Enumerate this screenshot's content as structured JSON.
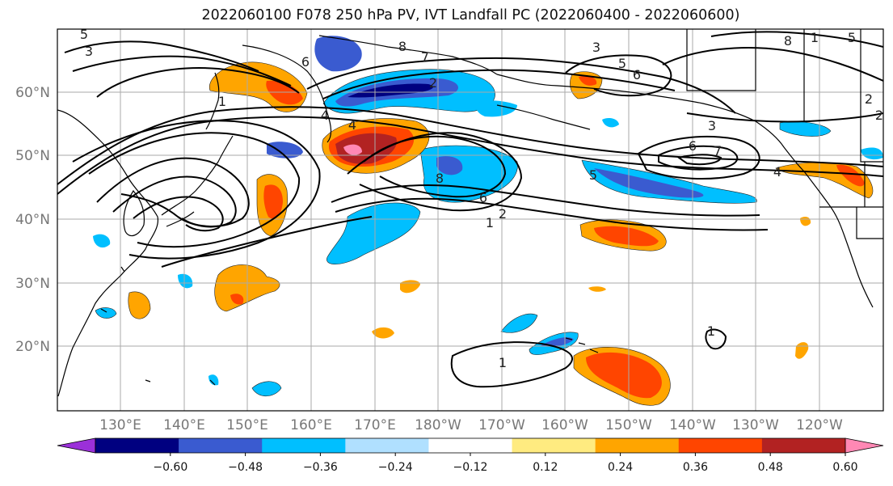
{
  "title": "2022060100 F078 250 hPa PV, IVT Landfall PC (2022060400 - 2022060600)",
  "lat_labels": [
    "60°N",
    "50°N",
    "40°N",
    "30°N",
    "20°N"
  ],
  "lon_labels": [
    "130°E",
    "140°E",
    "150°E",
    "160°E",
    "170°E",
    "180°W",
    "170°W",
    "160°W",
    "150°W",
    "140°W",
    "130°W",
    "120°W"
  ],
  "colorbar": {
    "ticks": [
      "−0.60",
      "−0.48",
      "−0.36",
      "−0.24",
      "−0.12",
      "0.12",
      "0.24",
      "0.36",
      "0.48",
      "0.60"
    ],
    "colors": [
      "#9b30d9",
      "#000080",
      "#3a5bd0",
      "#00bfff",
      "#b0e0ff",
      "#ffffff",
      "#ffeb80",
      "#ffa500",
      "#ff4500",
      "#b22222",
      "#ff88b4"
    ]
  },
  "contour_labels": [
    "5",
    "3",
    "6",
    "7",
    "8",
    "1",
    "2",
    "3",
    "5",
    "6",
    "8",
    "1",
    "2",
    "3",
    "6",
    "7",
    "4",
    "5",
    "6",
    "8",
    "1",
    "4",
    "5",
    "1",
    "2",
    "4",
    "1",
    "2"
  ],
  "colors": {
    "grid": "#aaaaaa",
    "coast": "#000000",
    "contour": "#000000"
  }
}
